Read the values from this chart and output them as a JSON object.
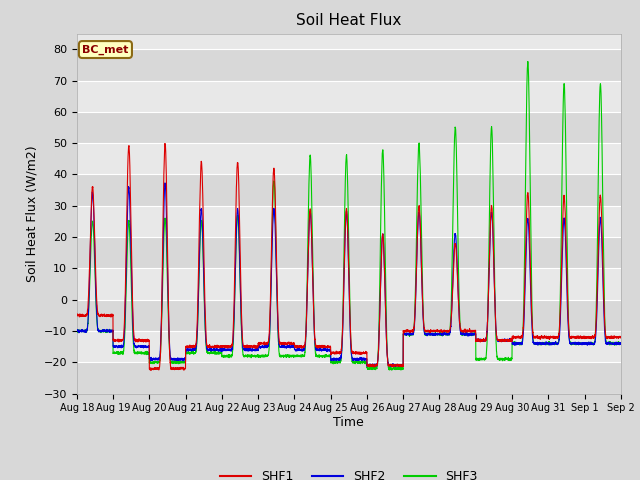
{
  "title": "Soil Heat Flux",
  "xlabel": "Time",
  "ylabel": "Soil Heat Flux (W/m2)",
  "ylim": [
    -30,
    85
  ],
  "yticks": [
    -30,
    -20,
    -10,
    0,
    10,
    20,
    30,
    40,
    50,
    60,
    70,
    80
  ],
  "bg_color": "#d8d8d8",
  "plot_bg_dark": "#d0d0d0",
  "plot_bg_light": "#e8e8e8",
  "legend_label": "BC_met",
  "legend_facecolor": "#ffffc0",
  "legend_edgecolor": "#8b6914",
  "series": [
    "SHF1",
    "SHF2",
    "SHF3"
  ],
  "colors": [
    "#dd0000",
    "#0000dd",
    "#00cc00"
  ],
  "n_days": 15,
  "x_tick_labels": [
    "Aug 18",
    "Aug 19",
    "Aug 20",
    "Aug 21",
    "Aug 22",
    "Aug 23",
    "Aug 24",
    "Aug 25",
    "Aug 26",
    "Aug 27",
    "Aug 28",
    "Aug 29",
    "Aug 30",
    "Aug 31",
    "Sep 1",
    "Sep 2"
  ],
  "peaks_shf1": [
    36,
    49,
    50,
    44,
    44,
    42,
    29,
    29,
    21,
    30,
    18,
    30,
    34,
    33,
    33
  ],
  "peaks_shf2": [
    34,
    36,
    37,
    29,
    29,
    29,
    28,
    28,
    21,
    28,
    21,
    28,
    26,
    26,
    26
  ],
  "peaks_shf3": [
    25,
    25,
    26,
    25,
    27,
    38,
    46,
    46,
    48,
    50,
    55,
    55,
    76,
    69,
    69
  ],
  "mins_shf1": [
    -5,
    -13,
    -22,
    -15,
    -15,
    -14,
    -15,
    -17,
    -21,
    -10,
    -10,
    -13,
    -12,
    -12,
    -12
  ],
  "mins_shf2": [
    -10,
    -15,
    -19,
    -16,
    -16,
    -15,
    -16,
    -19,
    -21,
    -11,
    -11,
    -13,
    -14,
    -14,
    -14
  ],
  "mins_shf3": [
    -10,
    -17,
    -20,
    -17,
    -18,
    -18,
    -18,
    -20,
    -22,
    -11,
    -11,
    -19,
    -14,
    -14,
    -14
  ]
}
